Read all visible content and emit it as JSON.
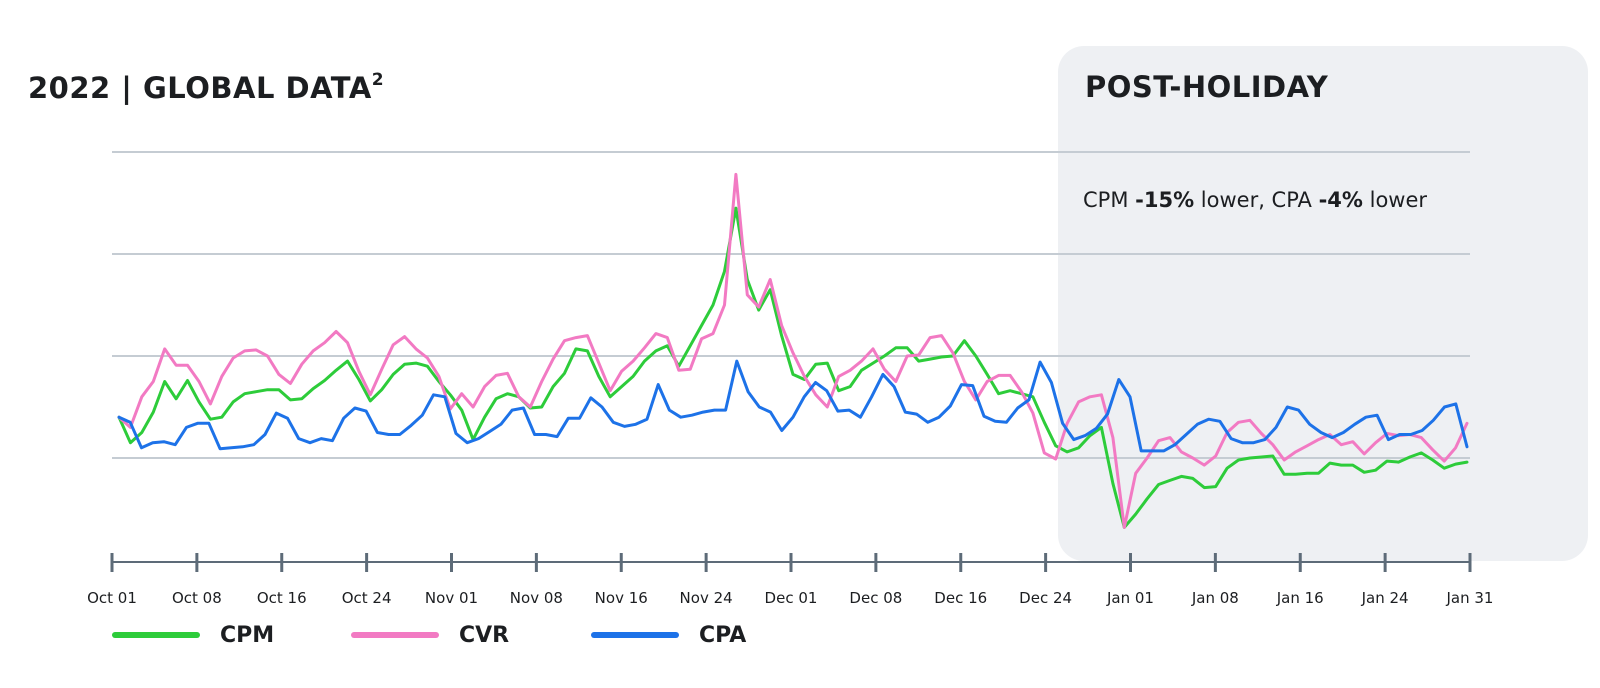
{
  "header": {
    "title": "2022 |  GLOBAL DATA",
    "title_sup": "2"
  },
  "panel": {
    "title": "POST-HOLIDAY",
    "note": {
      "p1": "CPM ",
      "b1": "-15%",
      "p2": " lower, CPA ",
      "b2": "-4%",
      "p3": " lower"
    },
    "background": "#eef0f3"
  },
  "colors": {
    "grid": "#c5ccd3",
    "axis": "#5d6b78",
    "cpm": "#2dcc3a",
    "cvr": "#f27ac3",
    "cpa": "#1d72e8"
  },
  "chart_data": {
    "type": "line",
    "title": "",
    "xlabel": "",
    "ylabel": "",
    "x_start": "Oct 01",
    "x_end": "Jan 31",
    "ylim": [
      0,
      4
    ],
    "grid": true,
    "gridline_values": [
      1,
      2,
      3,
      4
    ],
    "legend_position": "bottom-left",
    "shaded_region": {
      "from": "Dec 24",
      "to": "Jan 31",
      "label": "POST-HOLIDAY"
    },
    "x_tick_labels": [
      "Oct 01",
      "Oct 08",
      "Oct 16",
      "Oct 24",
      "Nov 01",
      "Nov 08",
      "Nov 16",
      "Nov 24",
      "Dec 01",
      "Dec 08",
      "Dec 16",
      "Dec 24",
      "Jan 01",
      "Jan 08",
      "Jan 16",
      "Jan 24",
      "Jan 31"
    ],
    "series": [
      {
        "name": "CPM",
        "key": "cpm",
        "values": [
          1.4,
          1.15,
          1.25,
          1.45,
          1.75,
          1.58,
          1.76,
          1.55,
          1.38,
          1.4,
          1.55,
          1.63,
          1.65,
          1.67,
          1.67,
          1.57,
          1.58,
          1.68,
          1.76,
          1.86,
          1.95,
          1.77,
          1.56,
          1.67,
          1.82,
          1.92,
          1.93,
          1.9,
          1.75,
          1.62,
          1.47,
          1.18,
          1.4,
          1.58,
          1.63,
          1.6,
          1.49,
          1.5,
          1.7,
          1.83,
          2.07,
          2.05,
          1.8,
          1.6,
          1.7,
          1.8,
          1.95,
          2.05,
          2.1,
          1.9,
          2.1,
          2.3,
          2.5,
          2.83,
          3.45,
          2.75,
          2.45,
          2.65,
          2.2,
          1.82,
          1.77,
          1.92,
          1.93,
          1.66,
          1.7,
          1.86,
          1.93,
          2.0,
          2.08,
          2.08,
          1.95,
          1.97,
          1.99,
          2.0,
          2.15,
          2.0,
          1.82,
          1.63,
          1.66,
          1.63,
          1.6,
          1.35,
          1.12,
          1.06,
          1.1,
          1.22,
          1.3,
          0.75,
          0.32,
          0.45,
          0.6,
          0.74,
          0.78,
          0.82,
          0.8,
          0.71,
          0.72,
          0.9,
          0.98,
          1.0,
          1.01,
          1.02,
          0.84,
          0.84,
          0.85,
          0.85,
          0.95,
          0.93,
          0.93,
          0.86,
          0.88,
          0.97,
          0.96,
          1.01,
          1.05,
          0.98,
          0.9,
          0.94,
          0.96
        ]
      },
      {
        "name": "CVR",
        "key": "cvr",
        "values": [
          1.4,
          1.3,
          1.6,
          1.75,
          2.07,
          1.91,
          1.91,
          1.75,
          1.53,
          1.8,
          1.98,
          2.05,
          2.06,
          2.0,
          1.82,
          1.73,
          1.92,
          2.05,
          2.13,
          2.24,
          2.13,
          1.85,
          1.62,
          1.87,
          2.11,
          2.19,
          2.07,
          1.98,
          1.8,
          1.48,
          1.63,
          1.5,
          1.7,
          1.81,
          1.83,
          1.6,
          1.5,
          1.75,
          1.97,
          2.15,
          2.18,
          2.2,
          1.93,
          1.66,
          1.85,
          1.95,
          2.08,
          2.22,
          2.18,
          1.86,
          1.87,
          2.17,
          2.22,
          2.5,
          3.78,
          2.6,
          2.48,
          2.75,
          2.3,
          2.03,
          1.8,
          1.62,
          1.5,
          1.8,
          1.86,
          1.95,
          2.07,
          1.87,
          1.75,
          2.0,
          2.01,
          2.18,
          2.2,
          2.03,
          1.75,
          1.57,
          1.75,
          1.81,
          1.81,
          1.65,
          1.44,
          1.05,
          0.99,
          1.34,
          1.55,
          1.6,
          1.62,
          1.2,
          0.32,
          0.85,
          1.0,
          1.17,
          1.2,
          1.06,
          1.0,
          0.93,
          1.02,
          1.25,
          1.35,
          1.37,
          1.24,
          1.13,
          0.98,
          1.06,
          1.12,
          1.18,
          1.23,
          1.13,
          1.16,
          1.04,
          1.15,
          1.24,
          1.22,
          1.23,
          1.2,
          1.08,
          0.97,
          1.1,
          1.34
        ]
      },
      {
        "name": "CPA",
        "key": "cpa",
        "values": [
          1.4,
          1.35,
          1.1,
          1.15,
          1.16,
          1.13,
          1.3,
          1.34,
          1.34,
          1.09,
          1.1,
          1.11,
          1.13,
          1.23,
          1.44,
          1.39,
          1.19,
          1.15,
          1.19,
          1.17,
          1.39,
          1.49,
          1.46,
          1.25,
          1.23,
          1.23,
          1.32,
          1.42,
          1.62,
          1.6,
          1.24,
          1.15,
          1.19,
          1.26,
          1.33,
          1.47,
          1.49,
          1.23,
          1.23,
          1.21,
          1.39,
          1.39,
          1.59,
          1.5,
          1.35,
          1.31,
          1.33,
          1.38,
          1.72,
          1.47,
          1.4,
          1.42,
          1.45,
          1.47,
          1.47,
          1.95,
          1.65,
          1.5,
          1.45,
          1.27,
          1.4,
          1.6,
          1.74,
          1.66,
          1.46,
          1.47,
          1.4,
          1.6,
          1.82,
          1.7,
          1.45,
          1.43,
          1.35,
          1.4,
          1.51,
          1.72,
          1.71,
          1.41,
          1.36,
          1.35,
          1.49,
          1.57,
          1.94,
          1.74,
          1.34,
          1.18,
          1.22,
          1.29,
          1.43,
          1.77,
          1.6,
          1.07,
          1.07,
          1.07,
          1.13,
          1.23,
          1.33,
          1.38,
          1.36,
          1.19,
          1.15,
          1.15,
          1.18,
          1.3,
          1.5,
          1.47,
          1.33,
          1.25,
          1.2,
          1.25,
          1.33,
          1.4,
          1.42,
          1.18,
          1.23,
          1.23,
          1.27,
          1.37,
          1.5,
          1.53,
          1.11
        ]
      }
    ]
  }
}
